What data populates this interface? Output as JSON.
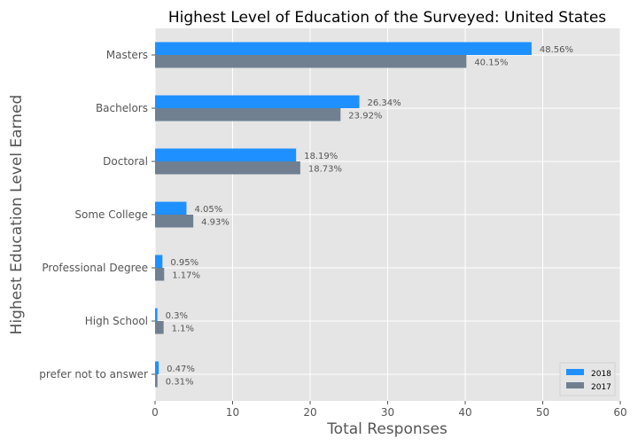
{
  "chart_data": {
    "type": "bar",
    "orientation": "horizontal",
    "title": "Highest Level of Education of the Surveyed: United States",
    "xlabel": "Total Responses",
    "ylabel": "Highest Education Level Earned",
    "xlim": [
      0,
      60
    ],
    "xticks": [
      "0",
      "10",
      "20",
      "30",
      "40",
      "50",
      "60"
    ],
    "grid": true,
    "legend_position": "bottom-right",
    "categories": [
      "Masters",
      "Bachelors",
      "Doctoral",
      "Some College",
      "Professional Degree",
      "High School",
      "prefer not to answer"
    ],
    "series": [
      {
        "name": "2018",
        "color": "#1e90ff",
        "values": [
          48.56,
          26.34,
          18.19,
          4.05,
          0.95,
          0.3,
          0.47
        ],
        "labels": [
          "48.56%",
          "26.34%",
          "18.19%",
          "4.05%",
          "0.95%",
          "0.3%",
          "0.47%"
        ]
      },
      {
        "name": "2017",
        "color": "#708090",
        "values": [
          40.15,
          23.92,
          18.73,
          4.93,
          1.17,
          1.1,
          0.31
        ],
        "labels": [
          "40.15%",
          "23.92%",
          "18.73%",
          "4.93%",
          "1.17%",
          "1.1%",
          "0.31%"
        ]
      }
    ]
  }
}
